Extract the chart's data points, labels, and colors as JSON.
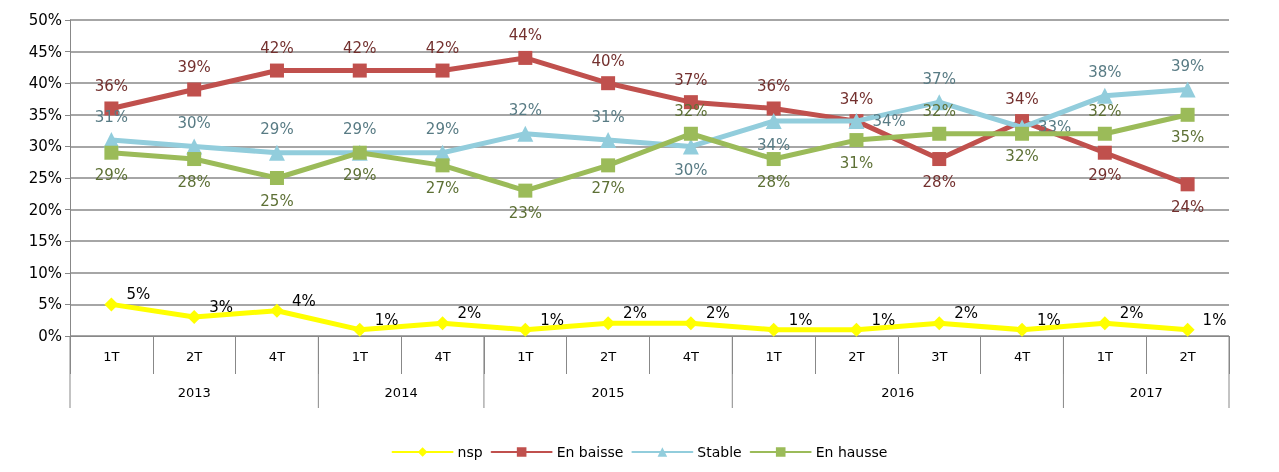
{
  "chart_data": {
    "type": "line",
    "categories": [
      "1T",
      "2T",
      "4T",
      "1T",
      "4T",
      "1T",
      "2T",
      "4T",
      "1T",
      "2T",
      "3T",
      "4T",
      "1T",
      "2T"
    ],
    "annotations": [
      "2013",
      "2014",
      "2015",
      "2016",
      "2017"
    ],
    "series": [
      {
        "name": "nsp",
        "color": "#ffff00",
        "marker": "diamond",
        "values": [
          5,
          3,
          4,
          1,
          2,
          1,
          2,
          2,
          1,
          1,
          2,
          1,
          2,
          1
        ],
        "value_labels": [
          "5%",
          "3%",
          "4%",
          "1%",
          "2%",
          "1%",
          "2%",
          "2%",
          "1%",
          "1%",
          "2%",
          "1%",
          "2%",
          "1%"
        ]
      },
      {
        "name": "En baisse",
        "color": "#c0504d",
        "marker": "square",
        "values": [
          36,
          39,
          42,
          42,
          42,
          44,
          40,
          37,
          36,
          34,
          28,
          34,
          29,
          24
        ],
        "value_labels": [
          "36%",
          "39%",
          "42%",
          "42%",
          "42%",
          "44%",
          "40%",
          "37%",
          "36%",
          "34%",
          "28%",
          "34%",
          "29%",
          "24%"
        ]
      },
      {
        "name": "Stable",
        "color": "#92cddc",
        "marker": "triangle",
        "values": [
          31,
          30,
          29,
          29,
          29,
          32,
          31,
          30,
          34,
          34,
          37,
          33,
          38,
          39
        ],
        "value_labels": [
          "31%",
          "30%",
          "29%",
          "29%",
          "29%",
          "32%",
          "31%",
          "30%",
          "34%",
          "34%",
          "37%",
          "33%",
          "38%",
          "39%"
        ]
      },
      {
        "name": "En hausse",
        "color": "#9bbb59",
        "marker": "square",
        "values": [
          29,
          28,
          25,
          29,
          27,
          23,
          27,
          32,
          28,
          31,
          32,
          32,
          32,
          35
        ],
        "value_labels": [
          "29%",
          "28%",
          "25%",
          "29%",
          "27%",
          "23%",
          "27%",
          "32%",
          "28%",
          "31%",
          "32%",
          "32%",
          "32%",
          "35%"
        ]
      }
    ],
    "ylim": [
      0,
      50
    ],
    "yticks": [
      {
        "value": 0,
        "label": "0%"
      },
      {
        "value": 5,
        "label": "5%"
      },
      {
        "value": 10,
        "label": "10%"
      },
      {
        "value": 15,
        "label": "15%"
      },
      {
        "value": 20,
        "label": "20%"
      },
      {
        "value": 25,
        "label": "25%"
      },
      {
        "value": 30,
        "label": "30%"
      },
      {
        "value": 35,
        "label": "35%"
      },
      {
        "value": 40,
        "label": "40%"
      },
      {
        "value": 45,
        "label": "45%"
      },
      {
        "value": 50,
        "label": "50%"
      }
    ],
    "grid": "y",
    "legend": "bottom",
    "line_style": "solid"
  }
}
